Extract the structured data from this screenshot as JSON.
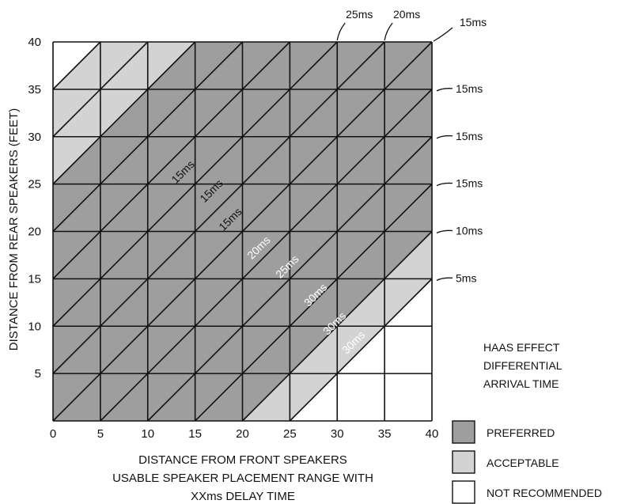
{
  "chart_data": {
    "type": "heatmap",
    "title": "",
    "xlabel": "DISTANCE FROM FRONT SPEAKERS",
    "xlabel_line2": "USABLE SPEAKER PLACEMENT RANGE WITH",
    "xlabel_line3": "XXms DELAY TIME",
    "ylabel": "DISTANCE FROM REAR SPEAKERS (FEET)",
    "xlim": [
      0,
      40
    ],
    "ylim": [
      0,
      40
    ],
    "x_ticks": [
      0,
      5,
      10,
      15,
      20,
      25,
      30,
      35,
      40
    ],
    "y_ticks": [
      5,
      10,
      15,
      20,
      25,
      30,
      35,
      40
    ],
    "grid": true,
    "colors": {
      "preferred": "#9e9e9e",
      "acceptable": "#d3d3d3",
      "not_recommended": "#ffffff",
      "line": "#111111"
    },
    "regions": {
      "preferred_band": {
        "min_x_minus_y": -25,
        "max_x_minus_y": 20
      },
      "acceptable_band": {
        "min_x_minus_y": -35,
        "max_x_minus_y": 25
      }
    },
    "legend": {
      "title": [
        "HAAS EFFECT",
        "DIFFERENTIAL",
        "ARRIVAL TIME"
      ],
      "placement": "bottom-right",
      "items": [
        {
          "label": "PREFERRED",
          "color_key": "preferred"
        },
        {
          "label": "ACCEPTABLE",
          "color_key": "acceptable"
        },
        {
          "label": "NOT RECOMMENDED",
          "color_key": "not_recommended"
        }
      ]
    },
    "top_annotations": [
      {
        "label": "25ms",
        "x": 30
      },
      {
        "label": "20ms",
        "x": 35
      },
      {
        "label": "15ms",
        "x": 40
      }
    ],
    "right_annotations": [
      {
        "label": "15ms",
        "y": 35
      },
      {
        "label": "15ms",
        "y": 30
      },
      {
        "label": "15ms",
        "y": 25
      },
      {
        "label": "10ms",
        "y": 20
      },
      {
        "label": "5ms",
        "y": 15
      }
    ],
    "diagonal_labels": [
      {
        "label": "15ms",
        "x": 14,
        "y": 26
      },
      {
        "label": "15ms",
        "x": 17,
        "y": 24
      },
      {
        "label": "15ms",
        "x": 19,
        "y": 21
      },
      {
        "label": "20ms",
        "x": 22,
        "y": 18
      },
      {
        "label": "25ms",
        "x": 25,
        "y": 16
      },
      {
        "label": "30ms",
        "x": 28,
        "y": 13
      },
      {
        "label": "30ms",
        "x": 30,
        "y": 10
      },
      {
        "label": "30ms",
        "x": 32,
        "y": 8
      }
    ]
  }
}
